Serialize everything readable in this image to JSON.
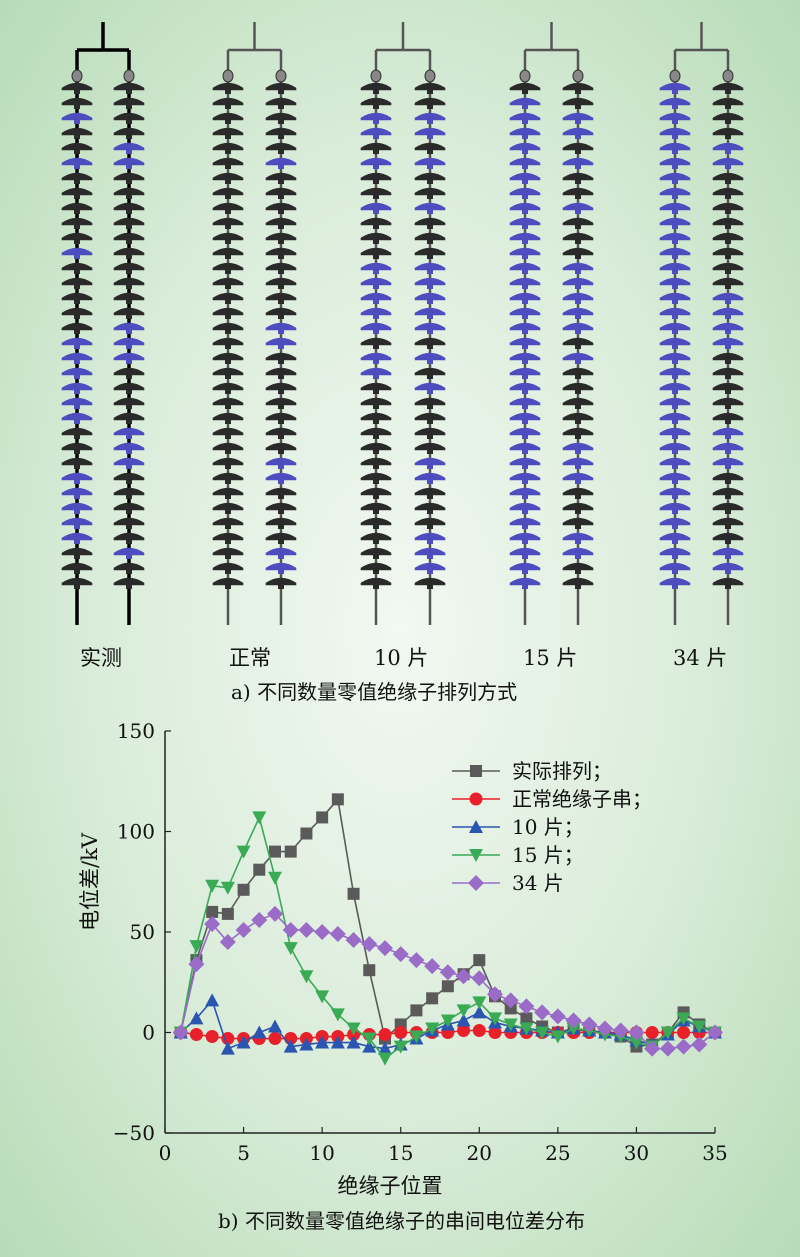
{
  "part_a": {
    "caption": "a) 不同数量零值绝缘子排列方式",
    "string_labels": [
      "实测",
      "正常",
      "10 片",
      "15 片",
      "34 片"
    ],
    "colors": {
      "normal": "#2a2a2a",
      "zero_value": "#4d4dbf",
      "measured_frame": "#000000",
      "simulated_frame": "#555555"
    }
  },
  "part_b": {
    "caption": "b) 不同数量零值绝缘子的串间电位差分布"
  },
  "chart_data": {
    "type": "line",
    "xlabel": "绝缘子位置",
    "ylabel": "电位差/kV",
    "xlim": [
      0,
      35
    ],
    "ylim": [
      -50,
      150
    ],
    "xticks": [
      0,
      5,
      10,
      15,
      20,
      25,
      30,
      35
    ],
    "yticks": [
      -50,
      0,
      50,
      100,
      150
    ],
    "legend_position": "top-right",
    "grid": false,
    "x": [
      1,
      2,
      3,
      4,
      5,
      6,
      7,
      8,
      9,
      10,
      11,
      12,
      13,
      14,
      15,
      16,
      17,
      18,
      19,
      20,
      21,
      22,
      23,
      24,
      25,
      26,
      27,
      28,
      29,
      30,
      31,
      32,
      33,
      34,
      35
    ],
    "series": [
      {
        "name": "实际排列；",
        "color": "#5a5a5a",
        "marker": "square",
        "values": [
          0,
          36,
          60,
          59,
          71,
          81,
          90,
          90,
          99,
          107,
          116,
          69,
          31,
          -3,
          4,
          11,
          17,
          23,
          29,
          36,
          18,
          12,
          7,
          3,
          0,
          1,
          1,
          0,
          -2,
          -7,
          -6,
          0,
          10,
          4,
          0
        ]
      },
      {
        "name": "正常绝缘子串；",
        "color": "#e8202a",
        "marker": "circle",
        "values": [
          0,
          -1,
          -2,
          -3,
          -3,
          -3,
          -3,
          -3,
          -3,
          -2,
          -2,
          -1,
          -1,
          -1,
          0,
          0,
          0,
          0,
          1,
          1,
          0,
          0,
          0,
          0,
          0,
          0,
          0,
          0,
          0,
          0,
          0,
          0,
          0,
          0,
          0
        ]
      },
      {
        "name": "10 片；",
        "color": "#2a55b0",
        "marker": "triangle-up",
        "values": [
          0,
          7,
          16,
          -8,
          -5,
          0,
          3,
          -7,
          -6,
          -5,
          -5,
          -5,
          -7,
          -8,
          -6,
          -3,
          1,
          4,
          6,
          10,
          5,
          3,
          2,
          1,
          0,
          2,
          1,
          0,
          -1,
          -4,
          -6,
          -1,
          6,
          3,
          0
        ]
      },
      {
        "name": "15 片；",
        "color": "#3aaa55",
        "marker": "triangle-down",
        "values": [
          0,
          43,
          73,
          72,
          90,
          107,
          77,
          42,
          28,
          18,
          9,
          2,
          -3,
          -13,
          -7,
          -2,
          2,
          6,
          11,
          15,
          7,
          4,
          2,
          0,
          -2,
          2,
          1,
          -1,
          -2,
          -5,
          -7,
          0,
          7,
          3,
          0
        ]
      },
      {
        "name": "34 片",
        "color": "#9a6cc8",
        "marker": "diamond",
        "values": [
          0,
          34,
          54,
          45,
          51,
          56,
          59,
          51,
          51,
          50,
          49,
          46,
          44,
          42,
          39,
          36,
          33,
          30,
          28,
          27,
          19,
          16,
          13,
          10,
          8,
          6,
          4,
          2,
          1,
          0,
          -8,
          -8,
          -7,
          -6,
          0
        ]
      }
    ]
  }
}
